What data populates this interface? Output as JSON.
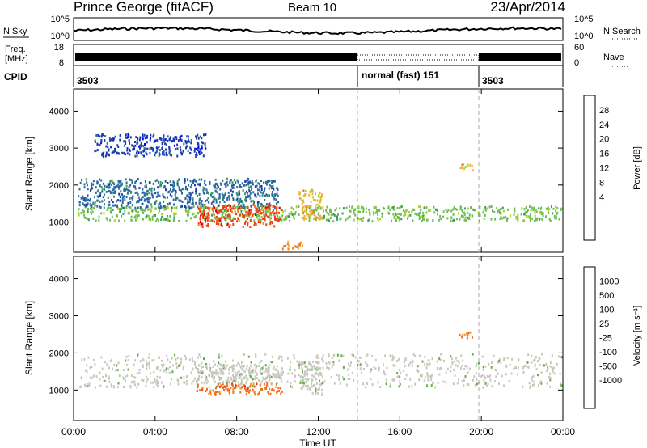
{
  "header": {
    "title": "Prince George (fitACF)",
    "beam": "Beam 10",
    "date": "23/Apr/2014"
  },
  "noise_panel": {
    "left_label": "N.Sky",
    "left_ticks": [
      "10^5",
      "10^0"
    ],
    "right_ticks": [
      "10^5",
      "10^0"
    ],
    "right_label": "N.Search"
  },
  "freq_panel": {
    "left_label_line1": "Freq.",
    "left_label_line2": "[MHz]",
    "left_ticks": [
      "18",
      "8"
    ],
    "right_ticks": [
      "60",
      "0"
    ],
    "right_label": "Nave"
  },
  "cpid_panel": {
    "label": "CPID",
    "segments": [
      "3503",
      "normal (fast) 151",
      "3503"
    ]
  },
  "power_panel": {
    "colorbar_title": "Power [dB]",
    "colorbar_ticks": [
      "28",
      "24",
      "20",
      "16",
      "12",
      "8",
      "4"
    ],
    "colorbar_colors": [
      "#e00000",
      "#f04010",
      "#f08020",
      "#f0b040",
      "#b8d020",
      "#70c050",
      "#3a9a60",
      "#2a6aa0",
      "#1a3ab0",
      "#0000ff"
    ]
  },
  "velocity_panel": {
    "colorbar_title": "Velocity [m s⁻¹]",
    "colorbar_ticks": [
      "1000",
      "500",
      "100",
      "25",
      "-25",
      "-100",
      "-500",
      "-1000"
    ],
    "colorbar_colors": [
      "#1a30b0",
      "#2a60a0",
      "#3a8a70",
      "#60b040",
      "#c8c8c0",
      "#c8c8c0",
      "#f0a030",
      "#f07020",
      "#f03010",
      "#e00000"
    ]
  },
  "x_axis": {
    "label": "Time UT",
    "ticks": [
      "00:00",
      "04:00",
      "08:00",
      "12:00",
      "16:00",
      "20:00",
      "00:00"
    ]
  },
  "y_axis": {
    "label": "Slant Range [km]",
    "ticks": [
      "1000",
      "2000",
      "3000",
      "4000"
    ]
  },
  "chart_data": [
    {
      "type": "heatmap",
      "title": "Prince George (fitACF)",
      "xlabel": "Time UT",
      "ylabel": "Slant Range [km]",
      "colorbar_label": "Power [dB]",
      "xlim": [
        0,
        24
      ],
      "ylim": [
        180,
        4600
      ],
      "clim": [
        0,
        32
      ],
      "scatter_regions": [
        {
          "t": [
            0.2,
            23.9
          ],
          "r": [
            1050,
            1450
          ],
          "value": 16
        },
        {
          "t": [
            0.2,
            10.0
          ],
          "r": [
            1400,
            2200
          ],
          "value": 8
        },
        {
          "t": [
            6.0,
            10.2
          ],
          "r": [
            900,
            1500
          ],
          "value": 28
        },
        {
          "t": [
            10.2,
            11.2
          ],
          "r": [
            300,
            500
          ],
          "value": 24
        },
        {
          "t": [
            11.0,
            12.2
          ],
          "r": [
            1100,
            1900
          ],
          "value": 20
        },
        {
          "t": [
            18.9,
            19.6
          ],
          "r": [
            2400,
            2600
          ],
          "value": 20
        },
        {
          "t": [
            1.0,
            6.5
          ],
          "r": [
            2800,
            3400
          ],
          "value": 4
        }
      ]
    },
    {
      "type": "heatmap",
      "title": "",
      "xlabel": "Time UT",
      "ylabel": "Slant Range [km]",
      "colorbar_label": "Velocity [m s⁻¹]",
      "xlim": [
        0,
        24
      ],
      "ylim": [
        180,
        4600
      ],
      "clim": [
        -1000,
        1000
      ],
      "scatter_regions": [
        {
          "t": [
            0.2,
            23.9
          ],
          "r": [
            1100,
            2000
          ],
          "value": 0
        },
        {
          "t": [
            6.0,
            10.2
          ],
          "r": [
            900,
            1200
          ],
          "value": -500
        },
        {
          "t": [
            6.0,
            10.2
          ],
          "r": [
            1200,
            1700
          ],
          "value": 100
        },
        {
          "t": [
            11.0,
            12.2
          ],
          "r": [
            900,
            1800
          ],
          "value": 100
        },
        {
          "t": [
            18.9,
            19.6
          ],
          "r": [
            2400,
            2600
          ],
          "value": -500
        }
      ]
    }
  ]
}
